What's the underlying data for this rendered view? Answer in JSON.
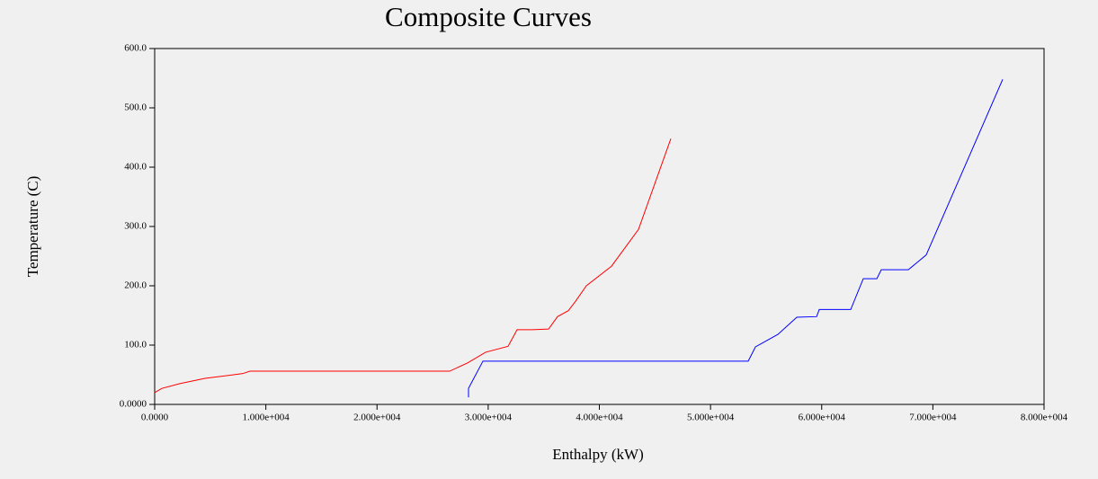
{
  "chart_data": {
    "type": "line",
    "title": "Composite Curves",
    "x_label": "Enthalpy (kW)",
    "y_label": "Temperature (C)",
    "xlim": [
      0,
      80000
    ],
    "ylim": [
      0,
      600
    ],
    "xticks": [
      {
        "value": 0,
        "label": "0.0000"
      },
      {
        "value": 10000,
        "label": "1.000e+004"
      },
      {
        "value": 20000,
        "label": "2.000e+004"
      },
      {
        "value": 30000,
        "label": "3.000e+004"
      },
      {
        "value": 40000,
        "label": "4.000e+004"
      },
      {
        "value": 50000,
        "label": "5.000e+004"
      },
      {
        "value": 60000,
        "label": "6.000e+004"
      },
      {
        "value": 70000,
        "label": "7.000e+004"
      },
      {
        "value": 80000,
        "label": "8.000e+004"
      }
    ],
    "yticks": [
      {
        "value": 0,
        "label": "0.0000"
      },
      {
        "value": 100,
        "label": "100.0"
      },
      {
        "value": 200,
        "label": "200.0"
      },
      {
        "value": 300,
        "label": "300.0"
      },
      {
        "value": 400,
        "label": "400.0"
      },
      {
        "value": 500,
        "label": "500.0"
      },
      {
        "value": 600,
        "label": "600.0"
      }
    ],
    "grid": false,
    "series": [
      {
        "color": "#ff0000",
        "x": [
          0,
          650,
          2260,
          4530,
          7930,
          8570,
          26530,
          28150,
          29770,
          31790,
          32600,
          33970,
          35430,
          36240,
          37210,
          37860,
          38830,
          41090,
          43520,
          46430
        ],
        "values": [
          20,
          27,
          35,
          44,
          52,
          56,
          56,
          70,
          88,
          98,
          126,
          126,
          127,
          148,
          158,
          174,
          200,
          233,
          295,
          448
        ]
      },
      {
        "color": "#0000ff",
        "x": [
          28230,
          28230,
          29530,
          53390,
          54040,
          56060,
          57760,
          59540,
          59780,
          62610,
          63740,
          64960,
          65360,
          67790,
          69400,
          76280
        ],
        "values": [
          12,
          27,
          73,
          73,
          97,
          118,
          147,
          148,
          160,
          160,
          212,
          212,
          227,
          227,
          252,
          548
        ]
      }
    ]
  }
}
